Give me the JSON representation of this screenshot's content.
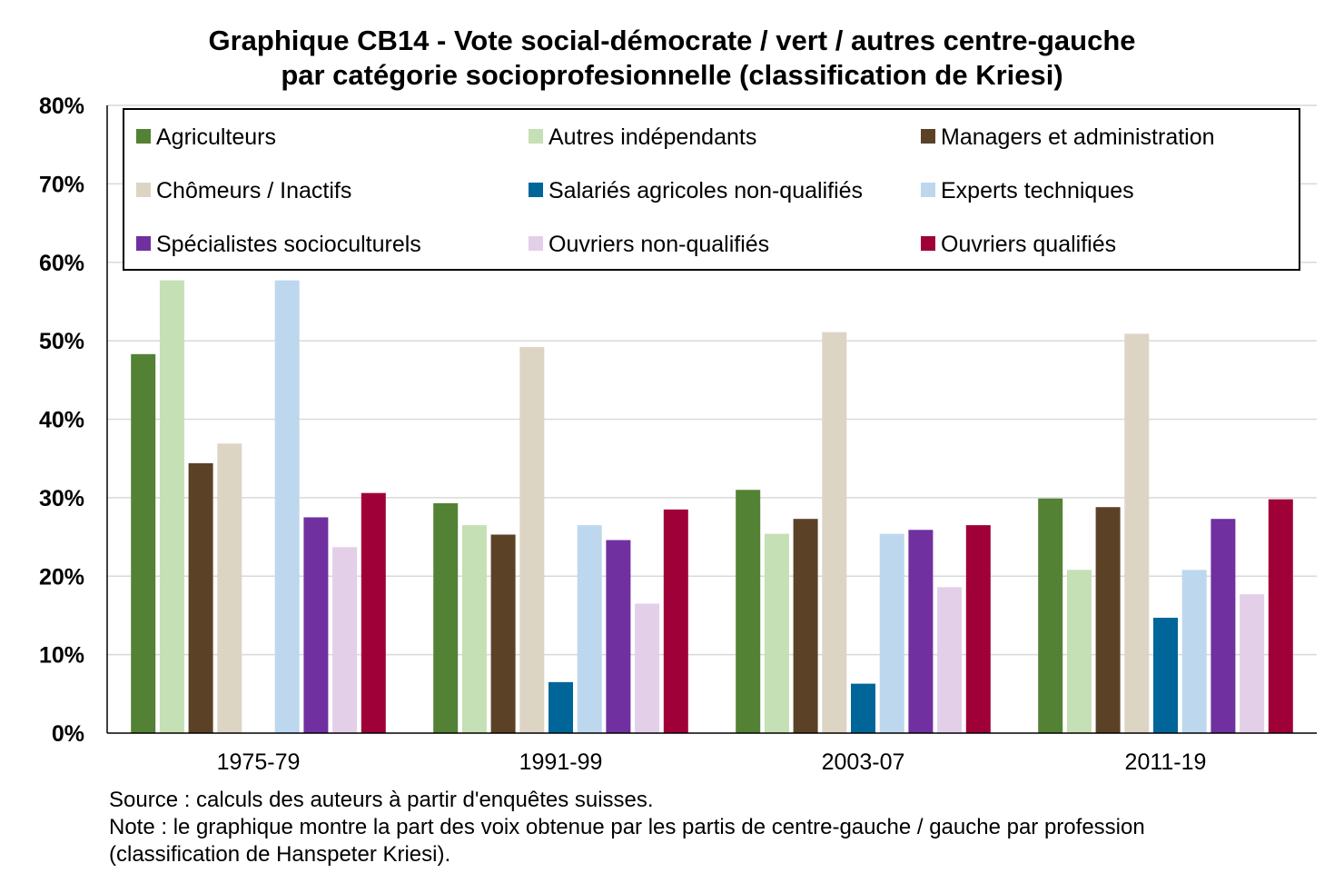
{
  "chart_data": {
    "type": "bar",
    "title_lines": [
      "Graphique CB14 - Vote social-démocrate / vert / autres centre-gauche",
      "par catégorie socioprofesionnelle (classification de Kriesi)"
    ],
    "xlabel": "",
    "ylabel": "",
    "ylim": [
      0,
      80
    ],
    "yticks": [
      "0%",
      "10%",
      "20%",
      "30%",
      "40%",
      "50%",
      "60%",
      "70%",
      "80%"
    ],
    "grid": true,
    "legend_position": "top, inside plot area, 3 columns",
    "categories": [
      "1975-79",
      "1991-99",
      "2003-07",
      "2011-19"
    ],
    "series": [
      {
        "name": "Agriculteurs",
        "color": "#548235",
        "values": [
          48.3,
          29.3,
          31.0,
          29.9
        ]
      },
      {
        "name": "Autres indépendants",
        "color": "#c5e0b4",
        "values": [
          57.7,
          26.5,
          25.4,
          20.8
        ]
      },
      {
        "name": "Managers et administration",
        "color": "#5b4226",
        "values": [
          34.4,
          25.3,
          27.3,
          28.8
        ]
      },
      {
        "name": "Chômeurs / Inactifs",
        "color": "#ddd5c4",
        "values": [
          36.9,
          49.2,
          51.1,
          50.9
        ]
      },
      {
        "name": "Salariés agricoles non-qualifiés",
        "color": "#006699",
        "values": [
          null,
          6.5,
          6.3,
          14.7
        ]
      },
      {
        "name": "Experts techniques",
        "color": "#bdd7ee",
        "values": [
          57.7,
          26.5,
          25.4,
          20.8
        ]
      },
      {
        "name": "Spécialistes socioculturels",
        "color": "#7030a0",
        "values": [
          27.5,
          24.6,
          25.9,
          27.3
        ]
      },
      {
        "name": "Ouvriers non-qualifiés",
        "color": "#e4cfe9",
        "values": [
          23.7,
          16.5,
          18.6,
          17.7
        ]
      },
      {
        "name": "Ouvriers qualifiés",
        "color": "#a00038",
        "values": [
          30.6,
          28.5,
          26.5,
          29.8
        ]
      }
    ],
    "legend_layout": [
      [
        "Agriculteurs",
        "Autres indépendants",
        "Managers et administration"
      ],
      [
        "Chômeurs / Inactifs",
        "Salariés agricoles non-qualifiés",
        "Experts techniques"
      ],
      [
        "Spécialistes socioculturels",
        "Ouvriers non-qualifiés",
        "Ouvriers qualifiés"
      ]
    ]
  },
  "notes": {
    "source": "Source : calculs des auteurs à partir d'enquêtes suisses.",
    "note_line1": "Note : le graphique montre la part des voix obtenue par les partis de centre-gauche / gauche par profession",
    "note_line2": "(classification de Hanspeter Kriesi)."
  }
}
